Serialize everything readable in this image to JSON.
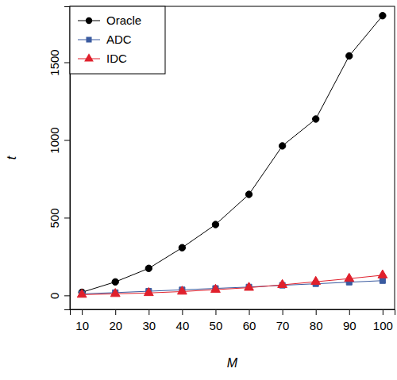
{
  "chart_data": {
    "type": "line",
    "x_label": "M",
    "y_label": "t",
    "x": [
      10,
      20,
      30,
      40,
      50,
      60,
      70,
      80,
      90,
      100
    ],
    "xlim": [
      6.4,
      103.6
    ],
    "xticks": [
      10,
      20,
      30,
      40,
      50,
      60,
      70,
      80,
      90,
      100
    ],
    "ylim": [
      -90,
      1860
    ],
    "yticks": [
      0,
      500,
      1000,
      1500
    ],
    "grid": false,
    "legend": "top-left",
    "series": [
      {
        "name": "Oracle",
        "color": "#000000",
        "marker": "circle",
        "line_style": "solid",
        "values": [
          20,
          87,
          174,
          307,
          456,
          650,
          962,
          1135,
          1541,
          1800
        ]
      },
      {
        "name": "ADC",
        "color": "#3a5ba0",
        "marker": "square",
        "line_style": "solid",
        "values": [
          10,
          18,
          27,
          36,
          45,
          54,
          65,
          75,
          85,
          95
        ]
      },
      {
        "name": "IDC",
        "color": "#e0202c",
        "marker": "triangle",
        "line_style": "solid",
        "values": [
          5,
          10,
          16,
          25,
          37,
          50,
          68,
          88,
          108,
          130
        ]
      }
    ]
  }
}
